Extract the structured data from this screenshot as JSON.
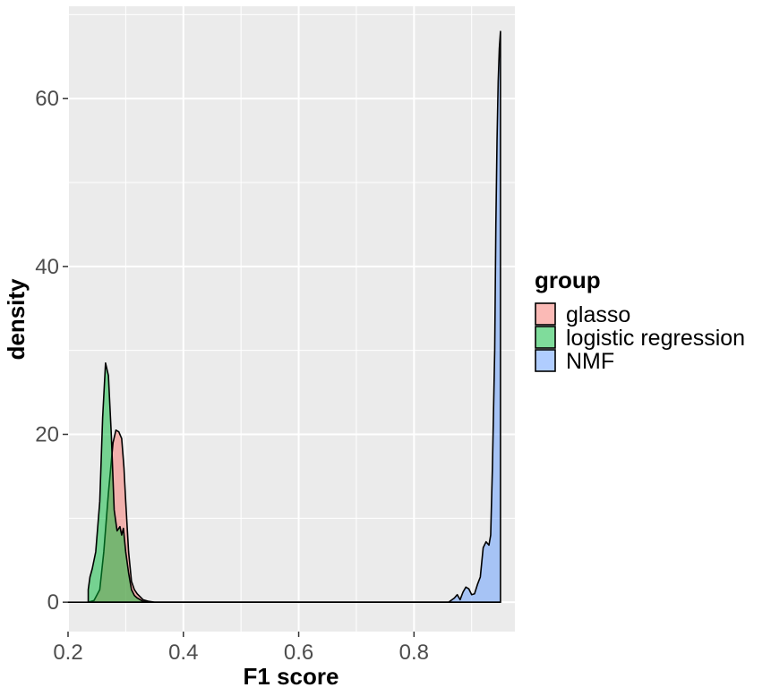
{
  "chart_data": {
    "type": "area",
    "xlabel": "F1 score",
    "ylabel": "density",
    "xlim": [
      0.2,
      0.975
    ],
    "ylim": [
      -3.5,
      71
    ],
    "x_ticks": [
      0.2,
      0.4,
      0.6,
      0.8
    ],
    "x_tick_labels": [
      "0.2",
      "0.4",
      "0.6",
      "0.8"
    ],
    "y_ticks": [
      0,
      20,
      40,
      60
    ],
    "y_tick_labels": [
      "0",
      "20",
      "40",
      "60"
    ],
    "grid": true,
    "background": "#ebebeb",
    "legend": {
      "title": "group",
      "position": "right"
    },
    "series": [
      {
        "name": "glasso",
        "color": "#f8766d",
        "x": [
          0.235,
          0.245,
          0.255,
          0.262,
          0.27,
          0.278,
          0.283,
          0.288,
          0.293,
          0.297,
          0.3,
          0.305,
          0.31,
          0.315,
          0.32,
          0.33,
          0.34,
          0.35,
          0.4,
          0.6,
          0.8,
          0.95
        ],
        "y": [
          0,
          0.2,
          1.5,
          6,
          13,
          19,
          20.5,
          20.3,
          19.5,
          16,
          12,
          6,
          2.5,
          1.5,
          1,
          0.3,
          0.1,
          0,
          0,
          0,
          0,
          0
        ]
      },
      {
        "name": "logistic regression",
        "color": "#00ba38",
        "x": [
          0.235,
          0.238,
          0.242,
          0.248,
          0.255,
          0.26,
          0.265,
          0.27,
          0.275,
          0.28,
          0.285,
          0.29,
          0.293,
          0.296,
          0.3,
          0.305,
          0.31,
          0.315,
          0.32,
          0.33,
          0.34,
          0.35,
          0.4,
          0.6,
          0.8,
          0.95
        ],
        "y": [
          1.5,
          3,
          4,
          6,
          12,
          22,
          28.5,
          27,
          20,
          11,
          8.5,
          9,
          8,
          8.8,
          6,
          3.5,
          1.5,
          0.8,
          0.5,
          0.1,
          0,
          0,
          0,
          0,
          0,
          0
        ]
      },
      {
        "name": "NMF",
        "color": "#619cff",
        "x": [
          0.2,
          0.4,
          0.6,
          0.8,
          0.86,
          0.87,
          0.875,
          0.88,
          0.885,
          0.89,
          0.895,
          0.9,
          0.905,
          0.91,
          0.915,
          0.92,
          0.925,
          0.93,
          0.933,
          0.936,
          0.94,
          0.942,
          0.944,
          0.946,
          0.948,
          0.95
        ],
        "y": [
          0,
          0,
          0,
          0,
          0,
          0.5,
          0.9,
          0.3,
          1.2,
          1.8,
          1.6,
          0.9,
          1.0,
          2.1,
          3.0,
          6.5,
          7.2,
          6.8,
          8,
          16,
          30,
          45,
          55,
          62,
          66,
          68
        ]
      }
    ]
  }
}
